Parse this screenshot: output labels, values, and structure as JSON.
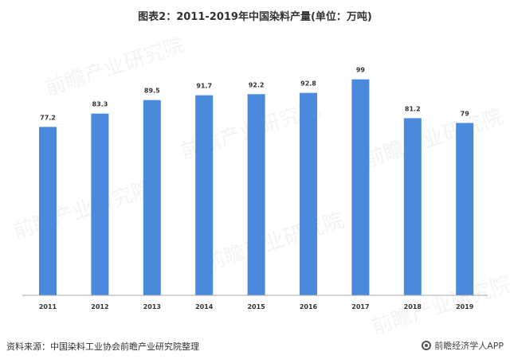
{
  "colors": {
    "bar": "#4a89dc",
    "axis": "#aaaaaa",
    "text": "#333333"
  },
  "footer": {
    "source": "资料来源：中国染料工业协会前瞻产业研究院整理",
    "logo_text": "前瞻经济学人APP"
  },
  "chart_data": {
    "type": "bar",
    "title": "图表2：2011-2019年中国染料产量(单位：万吨)",
    "xlabel": "",
    "ylabel": "",
    "categories": [
      "2011",
      "2012",
      "2013",
      "2014",
      "2015",
      "2016",
      "2017",
      "2018",
      "2019"
    ],
    "values": [
      77.2,
      83.3,
      89.5,
      91.7,
      92.2,
      92.8,
      99,
      81.2,
      79
    ],
    "value_labels": [
      "77.2",
      "83.3",
      "89.5",
      "91.7",
      "92.2",
      "92.8",
      "99",
      "81.2",
      "79"
    ],
    "ylim": [
      0,
      108
    ],
    "grid": false,
    "legend": "none"
  }
}
